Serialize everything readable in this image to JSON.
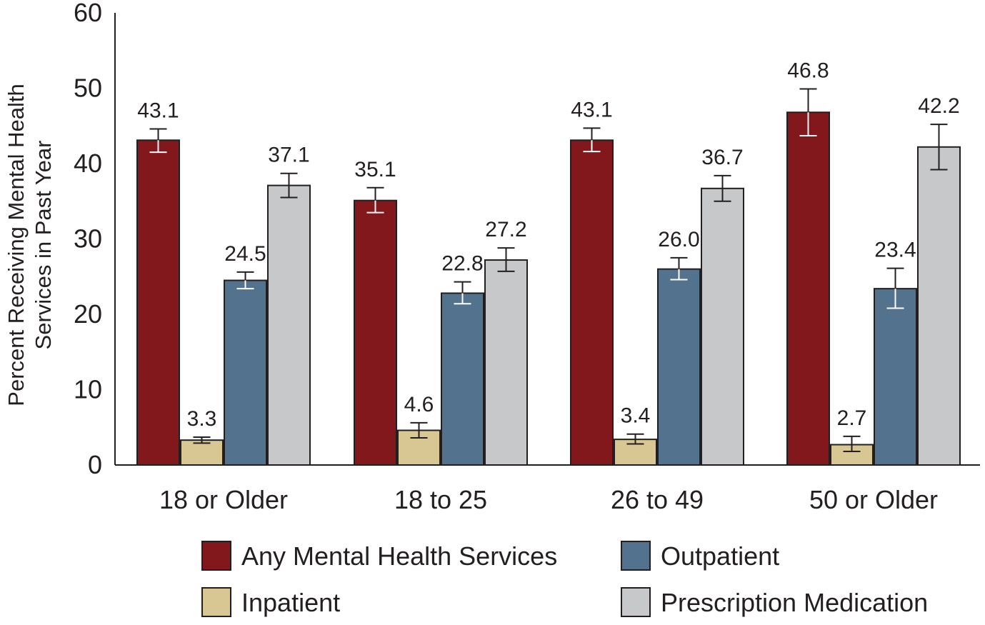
{
  "chart_data": {
    "type": "bar",
    "title": "",
    "xlabel": "",
    "ylabel_lines": [
      "Percent Receiving Mental Health",
      "Services in Past Year"
    ],
    "ylim": [
      0,
      60
    ],
    "yticks": [
      "0",
      "10",
      "20",
      "30",
      "40",
      "50",
      "60"
    ],
    "categories": [
      "18 or Older",
      "18 to 25",
      "26 to 49",
      "50 or Older"
    ],
    "series": [
      {
        "name": "Any Mental Health Services",
        "color": "#82171c",
        "values": [
          43.1,
          35.1,
          43.1,
          46.8
        ],
        "labels": [
          "43.1",
          "35.1",
          "43.1",
          "46.8"
        ],
        "ci": [
          [
            41.5,
            44.6
          ],
          [
            33.5,
            36.8
          ],
          [
            41.6,
            44.7
          ],
          [
            43.7,
            49.9
          ]
        ]
      },
      {
        "name": "Inpatient",
        "color": "#d9c793",
        "values": [
          3.3,
          4.6,
          3.4,
          2.7
        ],
        "labels": [
          "3.3",
          "4.6",
          "3.4",
          "2.7"
        ],
        "ci": [
          [
            2.9,
            3.7
          ],
          [
            3.6,
            5.6
          ],
          [
            2.8,
            4.1
          ],
          [
            1.8,
            3.8
          ]
        ]
      },
      {
        "name": "Outpatient",
        "color": "#53728d",
        "values": [
          24.5,
          22.8,
          26.0,
          23.4
        ],
        "labels": [
          "24.5",
          "22.8",
          "26.0",
          "23.4"
        ],
        "ci": [
          [
            23.4,
            25.6
          ],
          [
            21.4,
            24.3
          ],
          [
            24.6,
            27.5
          ],
          [
            20.8,
            26.1
          ]
        ]
      },
      {
        "name": "Prescription Medication",
        "color": "#c6c8ca",
        "values": [
          37.1,
          27.2,
          36.7,
          42.2
        ],
        "labels": [
          "37.1",
          "27.2",
          "36.7",
          "42.2"
        ],
        "ci": [
          [
            35.5,
            38.7
          ],
          [
            25.7,
            28.8
          ],
          [
            35.0,
            38.4
          ],
          [
            39.2,
            45.2
          ]
        ]
      }
    ],
    "legend_position": "bottom"
  }
}
